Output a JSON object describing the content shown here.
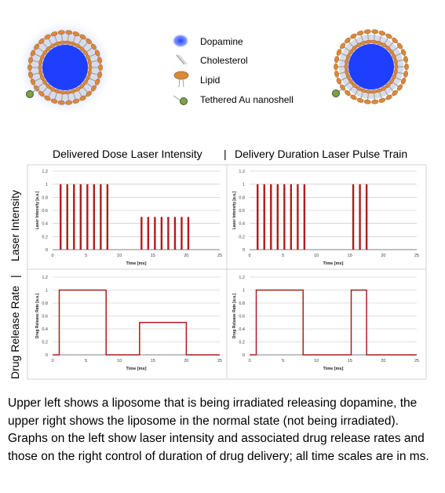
{
  "legend": {
    "items": [
      {
        "label": "Dopamine",
        "icon": "dopamine-icon"
      },
      {
        "label": "Cholesterol",
        "icon": "cholesterol-icon"
      },
      {
        "label": "Lipid",
        "icon": "lipid-icon"
      },
      {
        "label": "Tethered Au nanoshell",
        "icon": "au-nanoshell-icon"
      }
    ]
  },
  "colors": {
    "dopamine": "#1f3fff",
    "lipid": "#d8893a",
    "nanoshell": "#7ea04a",
    "trace": "#b01c1c",
    "grid": "#bfbfbf",
    "axis": "#808080",
    "frame": "#d0d0d0"
  },
  "figure": {
    "col_titles": [
      "Delivered Dose Laser Intensity",
      "|",
      "Delivery Duration Laser Pulse Train"
    ],
    "row_titles": [
      "Drug Release Rate",
      "|",
      "Laser Intensity"
    ]
  },
  "chart_data": [
    {
      "id": "dose-laser-intensity",
      "type": "line",
      "xlabel": "Time [ms]",
      "ylabel": "Laser Intensity [a.u.]",
      "xlim": [
        0,
        25
      ],
      "ylim": [
        0,
        1.2
      ],
      "xticks": [
        0,
        5,
        10,
        15,
        20,
        25
      ],
      "yticks": [
        0,
        0.2,
        0.4,
        0.6,
        0.8,
        1,
        1.2
      ],
      "series": [
        {
          "pulses": [
            {
              "x": 1.2,
              "y": 1
            },
            {
              "x": 2.2,
              "y": 1
            },
            {
              "x": 3.2,
              "y": 1
            },
            {
              "x": 4.2,
              "y": 1
            },
            {
              "x": 5.2,
              "y": 1
            },
            {
              "x": 6.2,
              "y": 1
            },
            {
              "x": 7.2,
              "y": 1
            },
            {
              "x": 8.2,
              "y": 1
            },
            {
              "x": 13.3,
              "y": 0.5
            },
            {
              "x": 14.3,
              "y": 0.5
            },
            {
              "x": 15.3,
              "y": 0.5
            },
            {
              "x": 16.3,
              "y": 0.5
            },
            {
              "x": 17.3,
              "y": 0.5
            },
            {
              "x": 18.3,
              "y": 0.5
            },
            {
              "x": 19.3,
              "y": 0.5
            },
            {
              "x": 20.3,
              "y": 0.5
            }
          ]
        }
      ]
    },
    {
      "id": "duration-laser-intensity",
      "type": "line",
      "xlabel": "Time [ms]",
      "ylabel": "Laser Intensity [a.u.]",
      "xlim": [
        0,
        25
      ],
      "ylim": [
        0,
        1.2
      ],
      "xticks": [
        0,
        5,
        10,
        15,
        20,
        25
      ],
      "yticks": [
        0,
        0.2,
        0.4,
        0.6,
        0.8,
        1,
        1.2
      ],
      "series": [
        {
          "pulses": [
            {
              "x": 1.2,
              "y": 1
            },
            {
              "x": 2.2,
              "y": 1
            },
            {
              "x": 3.2,
              "y": 1
            },
            {
              "x": 4.2,
              "y": 1
            },
            {
              "x": 5.2,
              "y": 1
            },
            {
              "x": 6.2,
              "y": 1
            },
            {
              "x": 7.2,
              "y": 1
            },
            {
              "x": 8.2,
              "y": 1
            },
            {
              "x": 15.5,
              "y": 1
            },
            {
              "x": 16.5,
              "y": 1
            },
            {
              "x": 17.5,
              "y": 1
            }
          ]
        }
      ]
    },
    {
      "id": "dose-drug-release",
      "type": "line",
      "xlabel": "Time [ms]",
      "ylabel": "Drug Release Rate [a.u.]",
      "xlim": [
        0,
        25
      ],
      "ylim": [
        0,
        1.2
      ],
      "xticks": [
        0,
        5,
        10,
        15,
        20,
        25
      ],
      "yticks": [
        0,
        0.2,
        0.4,
        0.6,
        0.8,
        1,
        1.2
      ],
      "series": [
        {
          "x": [
            0,
            1,
            1,
            8,
            8,
            13,
            13,
            20,
            20,
            25
          ],
          "y": [
            0,
            0,
            1,
            1,
            0,
            0,
            0.5,
            0.5,
            0,
            0
          ]
        }
      ]
    },
    {
      "id": "duration-drug-release",
      "type": "line",
      "xlabel": "Time [ms]",
      "ylabel": "Drug Release Rate [a.u.]",
      "xlim": [
        0,
        25
      ],
      "ylim": [
        0,
        1.2
      ],
      "xticks": [
        0,
        5,
        10,
        15,
        20,
        25
      ],
      "yticks": [
        0,
        0.2,
        0.4,
        0.6,
        0.8,
        1,
        1.2
      ],
      "series": [
        {
          "x": [
            0,
            1,
            1,
            8,
            8,
            15.2,
            15.2,
            17.5,
            17.5,
            25
          ],
          "y": [
            0,
            0,
            1,
            1,
            0,
            0,
            1,
            1,
            0,
            0
          ]
        }
      ]
    }
  ],
  "caption": "Upper left shows  a liposome that is being irradiated releasing dopamine, the upper right shows the liposome in the normal state (not being irradiated). Graphs on the left show laser intensity and associated drug release rates  and those on the right control of duration of drug delivery; all time scales  are in ms."
}
